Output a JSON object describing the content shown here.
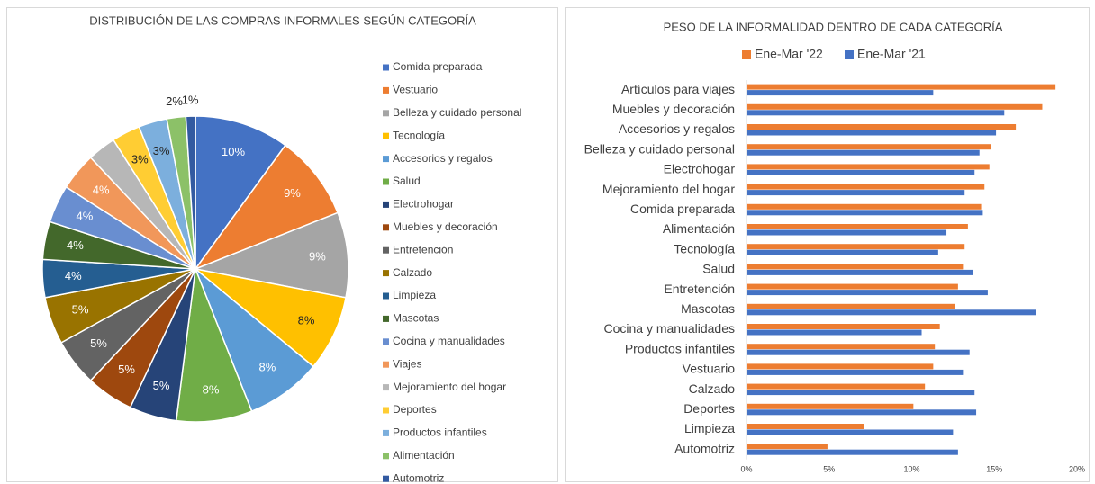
{
  "chart_data": [
    {
      "type": "pie",
      "title": "DISTRIBUCIÓN DE LAS COMPRAS INFORMALES SEGÚN CATEGORÍA",
      "categories": [
        "Comida preparada",
        "Vestuario",
        "Belleza y cuidado personal",
        "Tecnología",
        "Accesorios y regalos",
        "Salud",
        "Electrohogar",
        "Muebles y decoración",
        "Entretención",
        "Calzado",
        "Limpieza",
        "Mascotas",
        "Cocina y manualidades",
        "Viajes",
        "Mejoramiento del hogar",
        "Deportes",
        "Productos infantiles",
        "Alimentación",
        "Automotriz"
      ],
      "values": [
        10,
        9,
        9,
        8,
        8,
        8,
        5,
        5,
        5,
        5,
        4,
        4,
        4,
        4,
        3,
        3,
        3,
        2,
        1
      ],
      "value_labels": [
        "10%",
        "9%",
        "9%",
        "8%",
        "8%",
        "8%",
        "5%",
        "5%",
        "5%",
        "5%",
        "4%",
        "4%",
        "4%",
        "4%",
        null,
        "3%",
        "3%",
        "2%",
        "1%"
      ],
      "colors": [
        "#4472c4",
        "#ed7d31",
        "#a5a5a5",
        "#ffc000",
        "#5b9bd5",
        "#70ad47",
        "#264478",
        "#9e480e",
        "#636363",
        "#997300",
        "#255e91",
        "#43682b",
        "#698ed0",
        "#f1975a",
        "#b7b7b7",
        "#ffcd33",
        "#7cafdd",
        "#8cc168",
        "#335aa1"
      ],
      "legend": "right"
    },
    {
      "type": "hbar",
      "title": "PESO DE LA INFORMALIDAD DENTRO DE CADA CATEGORÍA",
      "categories": [
        "Artículos para viajes",
        "Muebles y decoración",
        "Accesorios y regalos",
        "Belleza y cuidado personal",
        "Electrohogar",
        "Mejoramiento del hogar",
        "Comida preparada",
        "Alimentación",
        "Tecnología",
        "Salud",
        "Entretención",
        "Mascotas",
        "Cocina y manualidades",
        "Productos infantiles",
        "Vestuario",
        "Calzado",
        "Deportes",
        "Limpieza",
        "Automotriz"
      ],
      "series": [
        {
          "name": "Ene-Mar '22",
          "color": "#ed7d31",
          "values": [
            18.7,
            17.9,
            16.3,
            14.8,
            14.7,
            14.4,
            14.2,
            13.4,
            13.2,
            13.1,
            12.8,
            12.6,
            11.7,
            11.4,
            11.3,
            10.8,
            10.1,
            7.1,
            4.9
          ]
        },
        {
          "name": "Ene-Mar '21",
          "color": "#4472c4",
          "values": [
            11.3,
            15.6,
            15.1,
            14.1,
            13.8,
            13.2,
            14.3,
            12.1,
            11.6,
            13.7,
            14.6,
            17.5,
            10.6,
            13.5,
            13.1,
            13.8,
            13.9,
            12.5,
            12.8
          ]
        }
      ],
      "xlim": [
        0,
        20
      ],
      "xticks": [
        {
          "value": 0,
          "label": "0%"
        },
        {
          "value": 5,
          "label": "5%"
        },
        {
          "value": 10,
          "label": "10%"
        },
        {
          "value": 15,
          "label": "15%"
        },
        {
          "value": 20,
          "label": "20%"
        }
      ],
      "legend": "top"
    }
  ]
}
